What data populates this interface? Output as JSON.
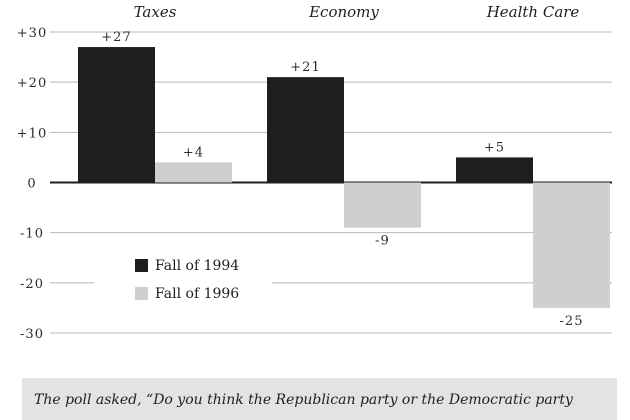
{
  "chart_data": {
    "type": "bar",
    "categories": [
      "Taxes",
      "Economy",
      "Health Care"
    ],
    "series": [
      {
        "name": "Fall of 1994",
        "values": [
          27,
          21,
          5
        ],
        "labels": [
          "+27",
          "+21",
          "+5"
        ],
        "color": "#1e1e1e"
      },
      {
        "name": "Fall of 1996",
        "values": [
          4,
          -9,
          -25
        ],
        "labels": [
          "+4",
          "-9",
          "-25"
        ],
        "color": "#cfcfcf"
      }
    ],
    "title": "",
    "xlabel": "",
    "ylabel": "",
    "ylim": [
      -30,
      30
    ],
    "yticks": [
      30,
      20,
      10,
      0,
      -10,
      -20,
      -30
    ],
    "ytick_labels": [
      "+30",
      "+20",
      "+10",
      "0",
      "-10",
      "-20",
      "-30"
    ],
    "grid": true,
    "legend_position": "bottom-left"
  },
  "caption": "The poll asked, “Do you think the Republican party or the Democratic party"
}
